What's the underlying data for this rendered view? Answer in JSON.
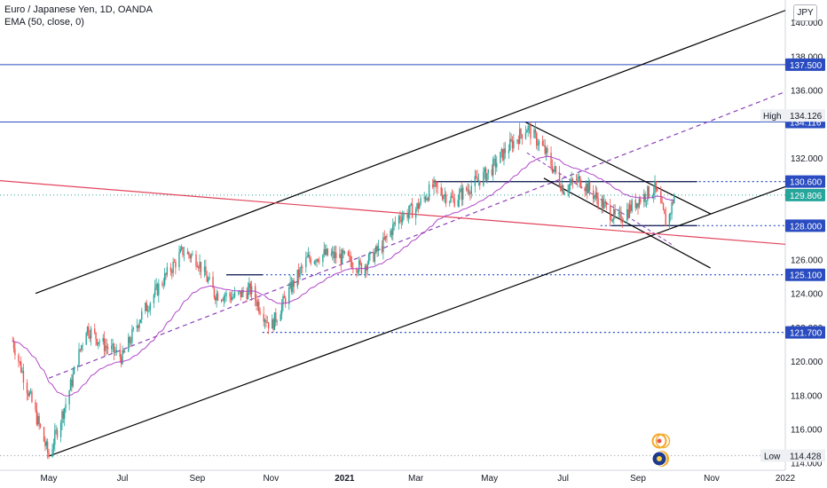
{
  "legend": {
    "symbol": "Euro / Japanese Yen, 1D, OANDA",
    "indicator": "EMA (50, close, 0)"
  },
  "currency_button": "JPY",
  "chart_data": {
    "type": "candlestick",
    "ylim": [
      113.2,
      141.2
    ],
    "y_ticks": [
      "114.000",
      "116.000",
      "118.000",
      "120.000",
      "122.000",
      "124.000",
      "126.000",
      "128.000",
      "130.000",
      "132.000",
      "134.000",
      "136.000",
      "138.000",
      "140.000"
    ],
    "x_ticks": [
      "May",
      "Jul",
      "Sep",
      "Nov",
      "2021",
      "Mar",
      "May",
      "Jul",
      "Sep",
      "Nov",
      "2022"
    ],
    "price_tags": [
      {
        "label": "137.500",
        "value": 137.5,
        "style": "blue"
      },
      {
        "label": "134.116",
        "value": 134.116,
        "style": "blue"
      },
      {
        "label": "130.600",
        "value": 130.6,
        "style": "blue"
      },
      {
        "label": "129.806",
        "value": 129.806,
        "style": "green"
      },
      {
        "label": "128.000",
        "value": 128.0,
        "style": "blue"
      },
      {
        "label": "125.100",
        "value": 125.1,
        "style": "blue"
      },
      {
        "label": "121.700",
        "value": 121.7,
        "style": "blue"
      }
    ],
    "high": {
      "label": "High",
      "value": "134.126"
    },
    "low": {
      "label": "Low",
      "value": "114.428"
    },
    "colors": {
      "up": "#26a69a",
      "down": "#ef5350",
      "ema": "#b048c8",
      "levels": "#2a4cc0",
      "trend": "#000000",
      "red_line": "#e2445c"
    },
    "ohlc_anchors": [
      [
        "2020-04-01",
        121.2
      ],
      [
        "2020-04-15",
        118.0
      ],
      [
        "2020-05-01",
        114.4
      ],
      [
        "2020-05-15",
        117.5
      ],
      [
        "2020-06-01",
        122.0
      ],
      [
        "2020-06-15",
        121.0
      ],
      [
        "2020-07-01",
        120.2
      ],
      [
        "2020-07-15",
        122.5
      ],
      [
        "2020-08-01",
        124.5
      ],
      [
        "2020-08-20",
        126.5
      ],
      [
        "2020-09-01",
        126.0
      ],
      [
        "2020-09-15",
        124.0
      ],
      [
        "2020-10-01",
        123.8
      ],
      [
        "2020-10-15",
        124.2
      ],
      [
        "2020-11-01",
        122.0
      ],
      [
        "2020-11-15",
        124.0
      ],
      [
        "2020-12-01",
        126.0
      ],
      [
        "2020-12-15",
        126.3
      ],
      [
        "2021-01-01",
        126.1
      ],
      [
        "2021-01-15",
        125.5
      ],
      [
        "2021-02-01",
        126.8
      ],
      [
        "2021-02-15",
        128.5
      ],
      [
        "2021-03-01",
        129.0
      ],
      [
        "2021-03-15",
        130.3
      ],
      [
        "2021-04-01",
        129.5
      ],
      [
        "2021-04-15",
        130.3
      ],
      [
        "2021-05-01",
        131.2
      ],
      [
        "2021-05-15",
        132.5
      ],
      [
        "2021-06-01",
        133.8
      ],
      [
        "2021-06-15",
        132.5
      ],
      [
        "2021-07-01",
        130.2
      ],
      [
        "2021-07-15",
        130.7
      ],
      [
        "2021-08-01",
        129.4
      ],
      [
        "2021-08-15",
        128.3
      ],
      [
        "2021-09-01",
        129.5
      ],
      [
        "2021-09-15",
        130.2
      ],
      [
        "2021-09-25",
        128.0
      ],
      [
        "2021-10-01",
        129.8
      ]
    ],
    "trend_lines": [
      {
        "from": [
          "2020-04-20",
          124.0
        ],
        "to": [
          "2021-05-31",
          134.1
        ],
        "to_ext": [
          "2022-01-01",
          140.7
        ],
        "style": "solid"
      },
      {
        "from": [
          "2020-05-01",
          114.4
        ],
        "to": [
          "2022-01-01",
          130.3
        ],
        "style": "solid"
      },
      {
        "from": [
          "2020-05-01",
          119.0
        ],
        "to": [
          "2022-01-01",
          135.9
        ],
        "style": "dashed"
      },
      {
        "from": [
          "2021-05-31",
          134.1
        ],
        "to": [
          "2021-10-31",
          128.7
        ],
        "style": "solid"
      },
      {
        "from": [
          "2021-06-15",
          130.8
        ],
        "to": [
          "2021-10-31",
          125.5
        ],
        "style": "solid"
      },
      {
        "from": [
          "2019-12-01",
          131.3
        ],
        "to": [
          "2022-01-01",
          126.9
        ],
        "style": "red"
      }
    ],
    "h_segments": [
      {
        "from": "2021-03-15",
        "to": "2021-10-20",
        "value": 130.6
      },
      {
        "from": "2021-08-10",
        "to": "2021-10-20",
        "value": 128.0
      },
      {
        "from": "2020-09-25",
        "to": "2020-10-25",
        "value": 125.1
      }
    ],
    "dotted_levels": [
      {
        "from": "2021-03-15",
        "value": 130.6
      },
      {
        "from": "2021-08-01",
        "value": 128.0
      },
      {
        "from": "2020-09-25",
        "value": 125.1
      },
      {
        "from": "2020-10-25",
        "value": 121.7
      },
      {
        "from": "2019-12-01",
        "value": 114.43
      }
    ],
    "full_levels": [
      {
        "value": 137.5
      },
      {
        "value": 134.116
      }
    ]
  }
}
